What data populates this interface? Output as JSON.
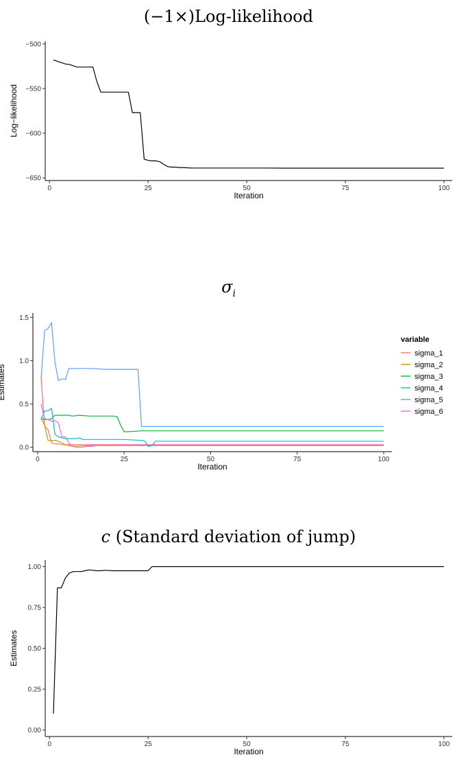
{
  "chart_data": [
    {
      "type": "line",
      "title": "(−1×)Log-likelihood",
      "xlabel": "Iteration",
      "ylabel": "Log−likelihood",
      "xlim": [
        1,
        100
      ],
      "ylim": [
        -653,
        -497
      ],
      "xticks": [
        0,
        25,
        50,
        75,
        100
      ],
      "yticks": [
        -500,
        -550,
        -600,
        -650
      ],
      "grid": false,
      "series": [
        {
          "name": "",
          "color": "#000000",
          "x": [
            1,
            2,
            3,
            4,
            5,
            6,
            7,
            8,
            9,
            10,
            11,
            12,
            13,
            14,
            15,
            16,
            17,
            18,
            19,
            20,
            21,
            22,
            23,
            24,
            25,
            26,
            27,
            28,
            29,
            30,
            31,
            32,
            33,
            34,
            35,
            36,
            40,
            45,
            50,
            55,
            60,
            70,
            80,
            90,
            100
          ],
          "y": [
            -518,
            -519.5,
            -521,
            -522.5,
            -523,
            -524.5,
            -526,
            -526,
            -526,
            -526,
            -526,
            -542,
            -554,
            -554,
            -554,
            -554,
            -554,
            -554,
            -554,
            -554,
            -577,
            -577,
            -577,
            -629,
            -630.5,
            -631,
            -631,
            -632,
            -635,
            -637.5,
            -638,
            -638,
            -638.5,
            -638.5,
            -638.8,
            -639,
            -639,
            -639,
            -639,
            -639,
            -639.2,
            -639.2,
            -639.2,
            -639.2,
            -639.2
          ]
        }
      ]
    },
    {
      "type": "line",
      "title": "σ",
      "title_sub": "i",
      "xlabel": "Iteration",
      "ylabel": "Estimates",
      "xlim": [
        1,
        100
      ],
      "ylim": [
        -0.05,
        1.55
      ],
      "xticks": [
        0,
        25,
        50,
        75,
        100
      ],
      "yticks": [
        0.0,
        0.5,
        1.0,
        1.5
      ],
      "ytick_labels": [
        "0.0",
        "0.5",
        "1.0",
        "1.5"
      ],
      "grid": false,
      "legend": {
        "title": "variable",
        "position": "right"
      },
      "series": [
        {
          "name": "sigma_1",
          "color": "#F8766D",
          "x": [
            1,
            2,
            3,
            4,
            5,
            6,
            7,
            8,
            9,
            10,
            15,
            20,
            25,
            30,
            31,
            32,
            33,
            35,
            50,
            75,
            100
          ],
          "y": [
            0.8,
            0.25,
            0.2,
            0.05,
            0.04,
            0.04,
            0.03,
            0.03,
            0.03,
            0.03,
            0.03,
            0.03,
            0.03,
            0.03,
            0.03,
            0.03,
            0.025,
            0.025,
            0.025,
            0.025,
            0.025
          ]
        },
        {
          "name": "sigma_2",
          "color": "#B79F00",
          "x": [
            1,
            2,
            3,
            4,
            5,
            6,
            7,
            8,
            9,
            10,
            15,
            20,
            25,
            30,
            35,
            50,
            75,
            100
          ],
          "y": [
            0.35,
            0.25,
            0.08,
            0.08,
            0.08,
            0.07,
            0.05,
            0.03,
            0.02,
            0.01,
            0.02,
            0.02,
            0.02,
            0.02,
            0.02,
            0.02,
            0.02,
            0.02
          ]
        },
        {
          "name": "sigma_3",
          "color": "#00BA38",
          "x": [
            1,
            2,
            3,
            4,
            5,
            6,
            7,
            8,
            9,
            10,
            12,
            15,
            20,
            22,
            23,
            24,
            25,
            26,
            30,
            35,
            50,
            75,
            100
          ],
          "y": [
            0.32,
            0.33,
            0.32,
            0.33,
            0.37,
            0.37,
            0.37,
            0.37,
            0.37,
            0.36,
            0.37,
            0.36,
            0.36,
            0.36,
            0.35,
            0.25,
            0.18,
            0.18,
            0.19,
            0.19,
            0.19,
            0.19,
            0.19
          ]
        },
        {
          "name": "sigma_4",
          "color": "#00BFC4",
          "x": [
            1,
            2,
            3,
            4,
            5,
            6,
            7,
            8,
            9,
            10,
            11,
            12,
            13,
            15,
            20,
            25,
            30,
            31,
            32,
            33,
            34,
            35,
            50,
            75,
            100
          ],
          "y": [
            0.32,
            0.42,
            0.42,
            0.45,
            0.15,
            0.12,
            0.11,
            0.1,
            0.1,
            0.1,
            0.1,
            0.11,
            0.09,
            0.09,
            0.09,
            0.09,
            0.08,
            0.07,
            0.01,
            0.02,
            0.07,
            0.07,
            0.07,
            0.07,
            0.07
          ]
        },
        {
          "name": "sigma_5",
          "color": "#619CFF",
          "x": [
            1,
            2,
            3,
            4,
            5,
            6,
            7,
            8,
            9,
            10,
            15,
            20,
            25,
            29,
            30,
            31,
            35,
            50,
            75,
            100
          ],
          "y": [
            0.8,
            1.35,
            1.37,
            1.44,
            0.98,
            0.77,
            0.79,
            0.78,
            0.91,
            0.91,
            0.91,
            0.9,
            0.9,
            0.9,
            0.24,
            0.24,
            0.24,
            0.24,
            0.24,
            0.24
          ]
        },
        {
          "name": "sigma_6",
          "color": "#F564E3",
          "x": [
            1,
            2,
            3,
            4,
            5,
            6,
            7,
            8,
            9,
            10,
            11,
            12,
            13,
            14,
            15,
            16,
            17,
            20,
            25,
            30,
            50,
            75,
            100
          ],
          "y": [
            0.5,
            0.32,
            0.32,
            0.3,
            0.31,
            0.28,
            0.12,
            0.12,
            0.05,
            0.02,
            0.0,
            0.0,
            0.0,
            0.01,
            0.01,
            0.01,
            0.03,
            0.02,
            0.03,
            0.03,
            0.03,
            0.03,
            0.03
          ]
        }
      ]
    },
    {
      "type": "line",
      "title": "c",
      "title_rest": " (Standard deviation of jump)",
      "xlabel": "Iteration",
      "ylabel": "Estimates",
      "xlim": [
        1,
        100
      ],
      "ylim": [
        -0.04,
        1.04
      ],
      "xticks": [
        0,
        25,
        50,
        75,
        100
      ],
      "yticks": [
        0.0,
        0.25,
        0.5,
        0.75,
        1.0
      ],
      "ytick_labels": [
        "0.00",
        "0.25",
        "0.50",
        "0.75",
        "1.00"
      ],
      "grid": false,
      "series": [
        {
          "name": "",
          "color": "#000000",
          "x": [
            1,
            2,
            3,
            4,
            5,
            6,
            7,
            8,
            9,
            10,
            11,
            12,
            13,
            14,
            15,
            16,
            17,
            20,
            25,
            26,
            30,
            35,
            50,
            75,
            100
          ],
          "y": [
            0.1,
            0.87,
            0.87,
            0.93,
            0.96,
            0.97,
            0.97,
            0.97,
            0.975,
            0.98,
            0.978,
            0.975,
            0.975,
            0.978,
            0.976,
            0.975,
            0.975,
            0.975,
            0.975,
            1.0,
            1.0,
            1.0,
            1.0,
            1.0,
            1.0
          ]
        }
      ]
    }
  ]
}
